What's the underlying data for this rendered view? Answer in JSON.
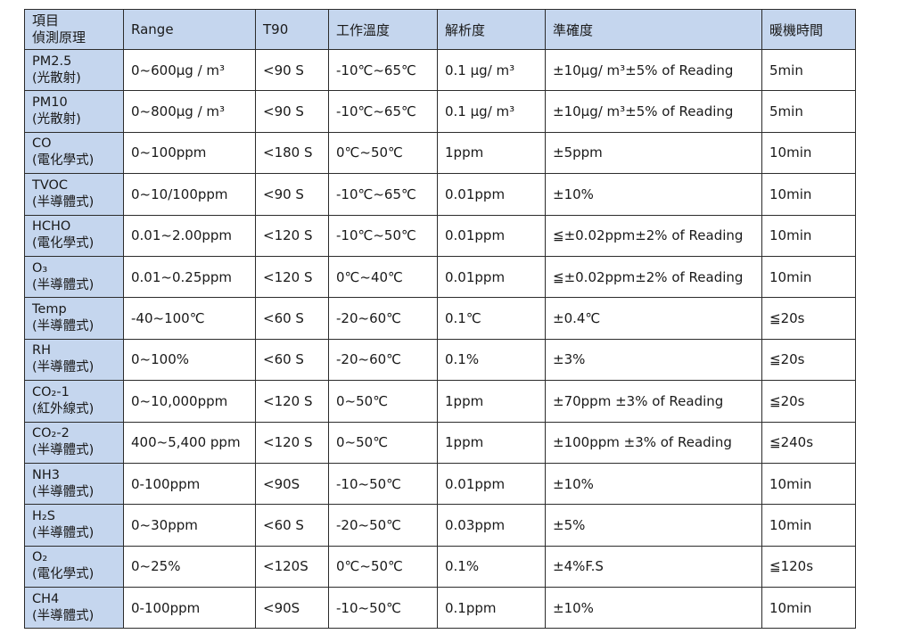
{
  "header": {
    "item_line1": "項目",
    "item_line2": "偵測原理",
    "range": "Range",
    "t90": "T90",
    "temp": "工作溫度",
    "resolution": "解析度",
    "accuracy": "準確度",
    "warmup": "暖機時間"
  },
  "rows": [
    {
      "name": "PM2.5",
      "principle": "(光散射)",
      "range": "0~600μg / m³",
      "t90": "<90 S",
      "temp": "-10℃~65℃",
      "resolution": "0.1 μg/ m³",
      "accuracy": "±10μg/ m³±5% of Reading",
      "warmup": "5min"
    },
    {
      "name": "PM10",
      "principle": "(光散射)",
      "range": "0~800μg / m³",
      "t90": "<90 S",
      "temp": "-10℃~65℃",
      "resolution": "0.1 μg/ m³",
      "accuracy": "±10μg/ m³±5% of Reading",
      "warmup": "5min"
    },
    {
      "name": "CO",
      "principle": "(電化學式)",
      "range": "0~100ppm",
      "t90": "<180 S",
      "temp": "0℃~50℃",
      "resolution": "1ppm",
      "accuracy": "±5ppm",
      "warmup": "10min"
    },
    {
      "name": "TVOC",
      "principle": "(半導體式)",
      "range": "0~10/100ppm",
      "t90": "<90 S",
      "temp": "-10℃~65℃",
      "resolution": "0.01ppm",
      "accuracy": "±10%",
      "warmup": "10min"
    },
    {
      "name": "HCHO",
      "principle": "(電化學式)",
      "range": "0.01~2.00ppm",
      "t90": "<120 S",
      "temp": "-10℃~50℃",
      "resolution": "0.01ppm",
      "accuracy": "≦±0.02ppm±2% of Reading",
      "warmup": "10min"
    },
    {
      "name": "O₃",
      "principle": "(半導體式)",
      "range": "0.01~0.25ppm",
      "t90": "<120 S",
      "temp": "0℃~40℃",
      "resolution": "0.01ppm",
      "accuracy": "≦±0.02ppm±2% of Reading",
      "warmup": "10min"
    },
    {
      "name": "Temp",
      "principle": "(半導體式)",
      "range": "-40~100℃",
      "t90": "<60 S",
      "temp": "-20~60℃",
      "resolution": "0.1℃",
      "accuracy": "±0.4℃",
      "warmup": "≦20s"
    },
    {
      "name": "RH",
      "principle": "(半導體式)",
      "range": "0~100%",
      "t90": "<60 S",
      "temp": "-20~60℃",
      "resolution": "0.1%",
      "accuracy": "±3%",
      "warmup": "≦20s"
    },
    {
      "name": "CO₂-1",
      "principle": "(紅外線式)",
      "range": "0~10,000ppm",
      "t90": "<120 S",
      "temp": "0~50℃",
      "resolution": "1ppm",
      "accuracy": "±70ppm ±3% of Reading",
      "warmup": "≦20s"
    },
    {
      "name": "CO₂-2",
      "principle": "(半導體式)",
      "range": "400~5,400 ppm",
      "t90": "<120 S",
      "temp": "0~50℃",
      "resolution": "1ppm",
      "accuracy": "±100ppm ±3% of Reading",
      "warmup": "≦240s"
    },
    {
      "name": "NH3",
      "principle": "(半導體式)",
      "range": "0-100ppm",
      "t90": "<90S",
      "temp": "-10~50℃",
      "resolution": "0.01ppm",
      "accuracy": "±10%",
      "warmup": "10min"
    },
    {
      "name": "H₂S",
      "principle": "(半導體式)",
      "range": "0~30ppm",
      "t90": "<60 S",
      "temp": "-20~50℃",
      "resolution": "0.03ppm",
      "accuracy": "±5%",
      "warmup": "10min"
    },
    {
      "name": "O₂",
      "principle": "(電化學式)",
      "range": "0~25%",
      "t90": "<120S",
      "temp": "0℃~50℃",
      "resolution": "0.1%",
      "accuracy": "±4%F.S",
      "warmup": "≦120s"
    },
    {
      "name": "CH4",
      "principle": "(半導體式)",
      "range": "0-100ppm",
      "t90": "<90S",
      "temp": "-10~50℃",
      "resolution": "0.1ppm",
      "accuracy": "±10%",
      "warmup": "10min"
    }
  ]
}
